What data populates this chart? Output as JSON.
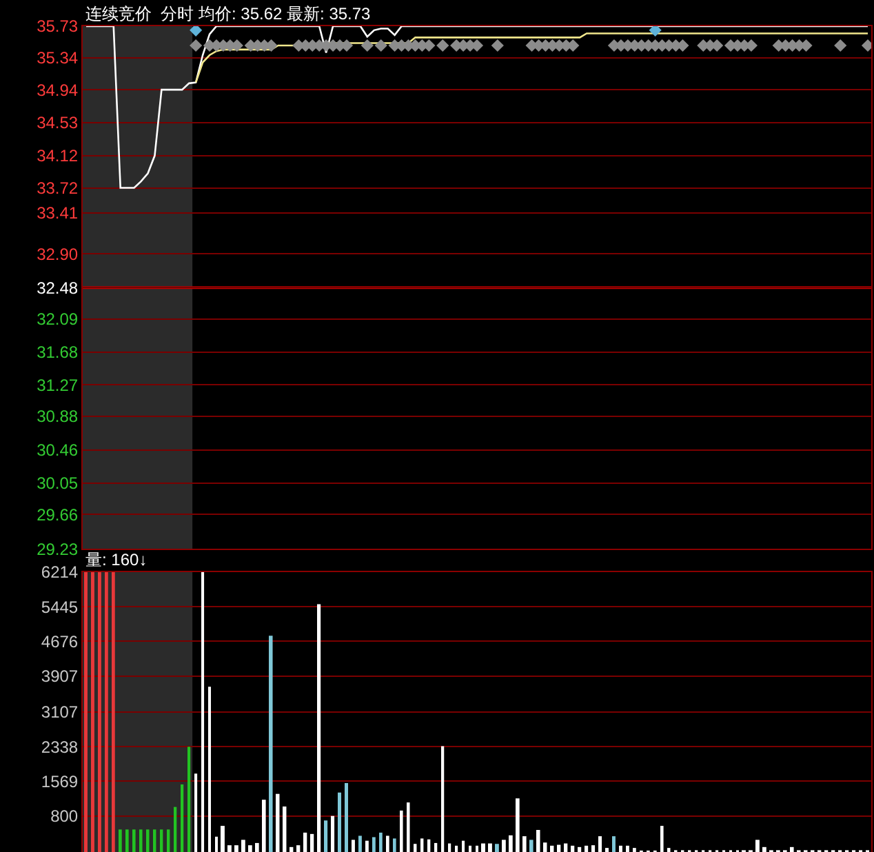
{
  "chart_data": [
    {
      "type": "line",
      "title": "连续竞价  分时 均价: 35.62 最新: 35.73",
      "categories": [
        null,
        null,
        null,
        null,
        null,
        null,
        null,
        null,
        null,
        null,
        null,
        null,
        null,
        null,
        null,
        null,
        null,
        null,
        null,
        null,
        null,
        null,
        null,
        null,
        null,
        null,
        null,
        null,
        null,
        null,
        null,
        null,
        null,
        null,
        null,
        null,
        null,
        null,
        null,
        null,
        null,
        null,
        null,
        null,
        null,
        null,
        null,
        null,
        null,
        null,
        null,
        null,
        null,
        null,
        null,
        null,
        null,
        null,
        null,
        null,
        null,
        null,
        null,
        null,
        null,
        null,
        null,
        null,
        null,
        null,
        null,
        null,
        null,
        null,
        null,
        null,
        null,
        null,
        null,
        null,
        null,
        null,
        null,
        null,
        null,
        null,
        null,
        null,
        null,
        null,
        null,
        null,
        null,
        null,
        null,
        null,
        null,
        null,
        null,
        null,
        null,
        null,
        null,
        null,
        null,
        null,
        null,
        null,
        null,
        null,
        null,
        null,
        null,
        null,
        null
      ],
      "series": [
        {
          "type": "line",
          "color": "#ffffff",
          "values": [
            35.73,
            35.73,
            35.73,
            35.73,
            35.73,
            33.72,
            33.72,
            33.72,
            33.8,
            33.9,
            34.12,
            34.94,
            34.94,
            34.94,
            34.94,
            35.02,
            35.03,
            35.37,
            35.63,
            35.73,
            35.73,
            35.73,
            35.73,
            35.73,
            35.73,
            35.73,
            35.73,
            35.73,
            35.73,
            35.73,
            35.73,
            35.73,
            35.73,
            35.73,
            35.73,
            35.4,
            35.73,
            35.73,
            35.73,
            35.73,
            35.73,
            35.6,
            35.68,
            35.7,
            35.7,
            35.62,
            35.73,
            35.73,
            35.73,
            35.73,
            35.73,
            35.73,
            35.73,
            35.73,
            35.73,
            35.73,
            35.73,
            35.73,
            35.73,
            35.73,
            35.73,
            35.73,
            35.73,
            35.73,
            35.73,
            35.73,
            35.73,
            35.73,
            35.73,
            35.73,
            35.73,
            35.73,
            35.73,
            35.73,
            35.73,
            35.73,
            35.73,
            35.73,
            35.73,
            35.73,
            35.73,
            35.73,
            35.73,
            35.73,
            35.73,
            35.73,
            35.73,
            35.73,
            35.73,
            35.73,
            35.73,
            35.73,
            35.73,
            35.73,
            35.73,
            35.73,
            35.73,
            35.73,
            35.73,
            35.73,
            35.73,
            35.73,
            35.73,
            35.73,
            35.73,
            35.73,
            35.73,
            35.73,
            35.73,
            35.73,
            35.73,
            35.73,
            35.73,
            35.73,
            35.73
          ]
        },
        {
          "type": "line",
          "color": "#f0e68c",
          "values": [
            null,
            null,
            null,
            null,
            null,
            null,
            null,
            null,
            null,
            null,
            null,
            null,
            null,
            null,
            null,
            null,
            35.03,
            35.28,
            35.37,
            35.42,
            35.44,
            35.44,
            35.44,
            35.44,
            35.44,
            35.44,
            35.44,
            35.44,
            35.49,
            35.49,
            35.49,
            35.49,
            35.49,
            35.49,
            35.49,
            35.52,
            35.52,
            35.52,
            35.52,
            35.52,
            35.52,
            35.52,
            35.52,
            35.52,
            35.52,
            35.52,
            35.52,
            35.52,
            35.59,
            35.59,
            35.59,
            35.59,
            35.59,
            35.59,
            35.59,
            35.59,
            35.59,
            35.59,
            35.59,
            35.59,
            35.59,
            35.59,
            35.59,
            35.59,
            35.59,
            35.59,
            35.59,
            35.59,
            35.59,
            35.59,
            35.59,
            35.59,
            35.59,
            35.64,
            35.64,
            35.64,
            35.64,
            35.64,
            35.64,
            35.64,
            35.64,
            35.64,
            35.64,
            35.64,
            35.64,
            35.64,
            35.64,
            35.64,
            35.64,
            35.64,
            35.64,
            35.64,
            35.64,
            35.64,
            35.64,
            35.64,
            35.64,
            35.64,
            35.64,
            35.64,
            35.64,
            35.64,
            35.64,
            35.64,
            35.64,
            35.64,
            35.64,
            35.64,
            35.64,
            35.64,
            35.64,
            35.64,
            35.64,
            35.64,
            35.64
          ]
        },
        {
          "type": "scatter",
          "marker": "diamond",
          "color": "#8c8c8c",
          "values": [
            null,
            null,
            null,
            null,
            null,
            null,
            null,
            null,
            null,
            null,
            null,
            null,
            null,
            null,
            null,
            null,
            35.49,
            null,
            35.49,
            35.49,
            35.49,
            35.49,
            35.49,
            null,
            35.49,
            35.49,
            35.49,
            35.49,
            null,
            null,
            null,
            35.49,
            35.49,
            35.49,
            35.49,
            35.49,
            35.49,
            35.49,
            35.49,
            null,
            null,
            35.49,
            null,
            35.49,
            null,
            35.49,
            35.49,
            35.49,
            35.49,
            35.49,
            35.49,
            null,
            35.49,
            null,
            35.49,
            35.49,
            35.49,
            35.49,
            null,
            null,
            35.49,
            null,
            null,
            null,
            null,
            35.49,
            35.49,
            35.49,
            35.49,
            35.49,
            35.49,
            35.49,
            null,
            null,
            null,
            null,
            null,
            35.49,
            35.49,
            35.49,
            35.49,
            35.49,
            35.49,
            35.49,
            35.49,
            35.49,
            35.49,
            35.49,
            null,
            null,
            35.49,
            35.49,
            35.49,
            null,
            35.49,
            35.49,
            35.49,
            35.49,
            null,
            null,
            null,
            35.49,
            35.49,
            35.49,
            35.49,
            35.49,
            null,
            null,
            null,
            null,
            35.49,
            null,
            null,
            null,
            35.49
          ]
        },
        {
          "type": "scatter",
          "marker": "diamond",
          "color": "#5fb3d9",
          "values": [
            null,
            null,
            null,
            null,
            null,
            null,
            null,
            null,
            null,
            null,
            null,
            null,
            null,
            null,
            null,
            null,
            35.68,
            null,
            null,
            null,
            null,
            null,
            null,
            null,
            null,
            null,
            null,
            null,
            null,
            null,
            null,
            null,
            null,
            null,
            null,
            null,
            null,
            null,
            null,
            null,
            null,
            null,
            null,
            null,
            null,
            null,
            null,
            null,
            null,
            null,
            null,
            null,
            null,
            null,
            null,
            null,
            null,
            null,
            null,
            null,
            null,
            null,
            null,
            null,
            null,
            null,
            null,
            null,
            null,
            null,
            null,
            null,
            null,
            null,
            null,
            null,
            null,
            null,
            null,
            null,
            null,
            null,
            null,
            35.68,
            null,
            null,
            null,
            null,
            null,
            null,
            null,
            null,
            null,
            null,
            null,
            null,
            null,
            null,
            null,
            null,
            null,
            null,
            null,
            null,
            null,
            null,
            null,
            null,
            null,
            null,
            null,
            null,
            null,
            null,
            null
          ]
        }
      ],
      "ylim": [
        29.23,
        35.73
      ],
      "yticks": [
        35.73,
        35.34,
        34.94,
        34.53,
        34.12,
        33.72,
        33.41,
        {
          "value": 32.9,
          "label": "32.90"
        },
        32.48,
        32.09,
        31.68,
        31.27,
        30.88,
        30.46,
        30.05,
        29.66,
        29.23
      ],
      "ref_lines": [
        {
          "axis": "y",
          "value": 32.48,
          "color": "#c00000"
        }
      ],
      "grid": "y",
      "tick_labels": "y",
      "line_style": "solid"
    },
    {
      "type": "bar",
      "title": "量: 160↓",
      "categories": [
        null,
        null,
        null,
        null,
        null,
        null,
        null,
        null,
        null,
        null,
        null,
        null,
        null,
        null,
        null,
        null,
        null,
        null,
        null,
        null,
        null,
        null,
        null,
        null,
        null,
        null,
        null,
        null,
        null,
        null,
        null,
        null,
        null,
        null,
        null,
        null,
        null,
        null,
        null,
        null,
        null,
        null,
        null,
        null,
        null,
        null,
        null,
        null,
        null,
        null,
        null,
        null,
        null,
        null,
        null,
        null,
        null,
        null,
        null,
        null,
        null,
        null,
        null,
        null,
        null,
        null,
        null,
        null,
        null,
        null,
        null,
        null,
        null,
        null,
        null,
        null,
        null,
        null,
        null,
        null,
        null,
        null,
        null,
        null,
        null,
        null,
        null,
        null,
        null,
        null,
        null,
        null,
        null,
        null,
        null,
        null,
        null,
        null,
        null,
        null,
        null,
        null,
        null,
        null,
        null,
        null,
        null,
        null,
        null,
        null,
        null,
        null,
        null,
        null,
        null
      ],
      "values": [
        6214,
        6214,
        6214,
        6214,
        6214,
        500,
        500,
        500,
        500,
        500,
        500,
        500,
        500,
        1000,
        1500,
        2338,
        1740,
        6214,
        3670,
        340,
        580,
        150,
        150,
        270,
        150,
        200,
        1160,
        4800,
        1290,
        1010,
        110,
        150,
        430,
        400,
        5500,
        700,
        800,
        1320,
        1530,
        270,
        360,
        250,
        330,
        430,
        360,
        300,
        920,
        1100,
        180,
        300,
        280,
        200,
        2350,
        190,
        140,
        250,
        140,
        140,
        190,
        190,
        180,
        270,
        370,
        1190,
        350,
        270,
        490,
        210,
        140,
        160,
        190,
        140,
        110,
        140,
        150,
        350,
        90,
        350,
        140,
        140,
        90,
        30,
        30,
        30,
        580,
        90,
        40,
        40,
        40,
        40,
        40,
        40,
        40,
        40,
        40,
        40,
        40,
        40,
        270,
        110,
        40,
        40,
        40,
        110,
        40,
        40,
        40,
        40,
        40,
        40,
        40,
        40,
        40,
        40,
        40
      ],
      "colors": [
        "#e8383a",
        "#e8383a",
        "#e8383a",
        "#e8383a",
        "#e8383a",
        "#22c322",
        "#22c322",
        "#22c322",
        "#22c322",
        "#22c322",
        "#22c322",
        "#22c322",
        "#22c322",
        "#22c322",
        "#22c322",
        "#22c322",
        "#ffffff",
        "#ffffff",
        "#ffffff",
        "#ffffff",
        "#ffffff",
        "#ffffff",
        "#ffffff",
        "#ffffff",
        "#ffffff",
        "#ffffff",
        "#ffffff",
        "#7fc8d8",
        "#ffffff",
        "#ffffff",
        "#ffffff",
        "#ffffff",
        "#ffffff",
        "#ffffff",
        "#ffffff",
        "#7fc8d8",
        "#ffffff",
        "#7fc8d8",
        "#7fc8d8",
        "#ffffff",
        "#7fc8d8",
        "#ffffff",
        "#7fc8d8",
        "#7fc8d8",
        "#ffffff",
        "#7fc8d8",
        "#ffffff",
        "#ffffff",
        "#ffffff",
        "#ffffff",
        "#ffffff",
        "#ffffff",
        "#ffffff",
        "#ffffff",
        "#ffffff",
        "#ffffff",
        "#ffffff",
        "#ffffff",
        "#ffffff",
        "#ffffff",
        "#7fc8d8",
        "#ffffff",
        "#ffffff",
        "#ffffff",
        "#ffffff",
        "#7fc8d8",
        "#ffffff",
        "#ffffff",
        "#ffffff",
        "#ffffff",
        "#ffffff",
        "#ffffff",
        "#ffffff",
        "#ffffff",
        "#ffffff",
        "#ffffff",
        "#ffffff",
        "#7fc8d8",
        "#ffffff",
        "#ffffff",
        "#ffffff",
        "#ffffff",
        "#ffffff",
        "#ffffff",
        "#ffffff",
        "#ffffff",
        "#ffffff",
        "#ffffff",
        "#ffffff",
        "#ffffff",
        "#ffffff",
        "#ffffff",
        "#ffffff",
        "#ffffff",
        "#ffffff",
        "#ffffff",
        "#ffffff",
        "#ffffff",
        "#ffffff",
        "#ffffff",
        "#ffffff",
        "#ffffff",
        "#ffffff",
        "#ffffff",
        "#ffffff",
        "#ffffff",
        "#ffffff",
        "#ffffff",
        "#ffffff",
        "#ffffff",
        "#ffffff",
        "#ffffff",
        "#ffffff",
        "#ffffff",
        "#ffffff"
      ],
      "ylim": [
        0,
        6214
      ],
      "yticks": [
        6214,
        5445,
        4676,
        3907,
        3107,
        2338,
        1569,
        800
      ],
      "grid": "y",
      "tick_labels": "y"
    }
  ]
}
